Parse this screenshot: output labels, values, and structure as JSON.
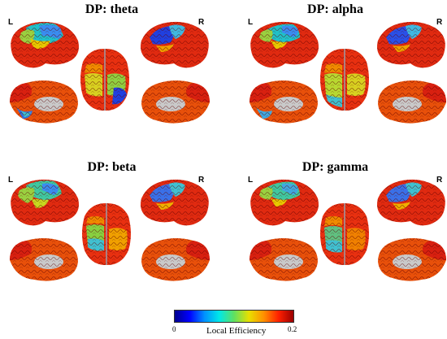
{
  "panels": [
    {
      "title": "DP: theta",
      "left": "L",
      "right": "R"
    },
    {
      "title": "DP: alpha",
      "left": "L",
      "right": "R"
    },
    {
      "title": "DP: beta",
      "left": "L",
      "right": "R"
    },
    {
      "title": "DP: gamma",
      "left": "L",
      "right": "R"
    }
  ],
  "colorbar": {
    "label": "Local Efficiency",
    "min": "0",
    "max": "0.2",
    "colors": [
      "#00008f",
      "#0000ff",
      "#0090ff",
      "#00e8e8",
      "#60e060",
      "#e8e000",
      "#ff9000",
      "#ff2000",
      "#9a0000"
    ]
  }
}
